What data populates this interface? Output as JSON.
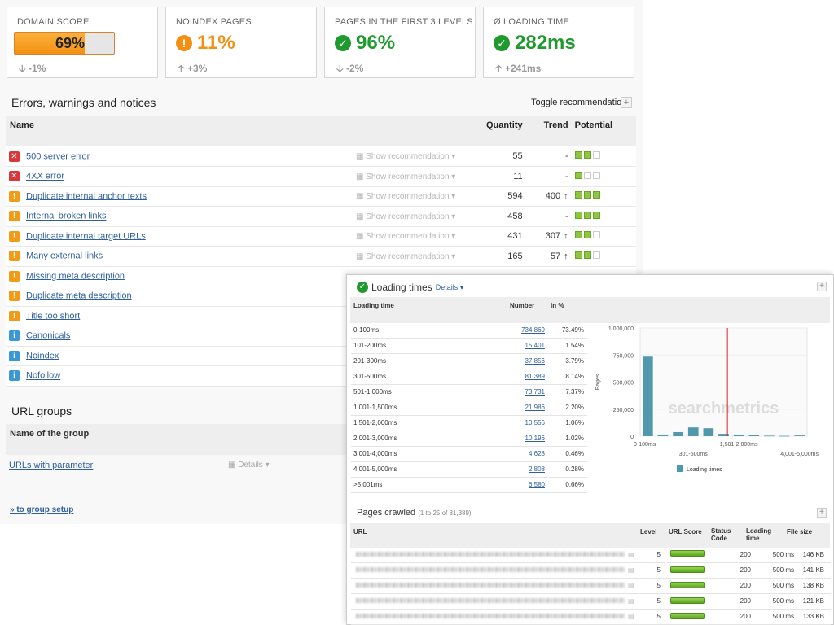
{
  "kpis": [
    {
      "label": "DOMAIN SCORE",
      "value": "69%",
      "score_fraction": 0.69,
      "change": "-1%",
      "change_dir": "down",
      "status": "score",
      "color": "#f39012"
    },
    {
      "label": "NOINDEX PAGES",
      "value": "11%",
      "change": "+3%",
      "change_dir": "up",
      "status": "warning",
      "color": "#f39012"
    },
    {
      "label": "PAGES IN THE FIRST 3 LEVELS",
      "value": "96%",
      "change": "-2%",
      "change_dir": "down",
      "status": "ok",
      "color": "#1f9a2e"
    },
    {
      "label": "Ø LOADING TIME",
      "value": "282ms",
      "change": "+241ms",
      "change_dir": "up",
      "status": "ok",
      "color": "#1f9a2e"
    }
  ],
  "errors": {
    "title": "Errors, warnings and notices",
    "toggle_label": "Toggle recommendations",
    "columns": {
      "name": "Name",
      "quantity": "Quantity",
      "trend": "Trend",
      "potential": "Potential"
    },
    "show_rec": "Show recommendation",
    "rows": [
      {
        "severity": "error",
        "name": "500 server error",
        "quantity": "55",
        "trend": "-",
        "trend_up": false,
        "potential": [
          1,
          1,
          0
        ]
      },
      {
        "severity": "error",
        "name": "4XX error",
        "quantity": "11",
        "trend": "-",
        "trend_up": false,
        "potential": [
          1,
          0,
          0
        ]
      },
      {
        "severity": "warning",
        "name": "Duplicate internal anchor texts",
        "quantity": "594",
        "trend": "400",
        "trend_up": true,
        "potential": [
          1,
          1,
          1
        ]
      },
      {
        "severity": "warning",
        "name": "Internal broken links",
        "quantity": "458",
        "trend": "-",
        "trend_up": false,
        "potential": [
          1,
          1,
          1
        ]
      },
      {
        "severity": "warning",
        "name": "Duplicate internal target URLs",
        "quantity": "431",
        "trend": "307",
        "trend_up": true,
        "potential": [
          1,
          1,
          0
        ]
      },
      {
        "severity": "warning",
        "name": "Many external links",
        "quantity": "165",
        "trend": "57",
        "trend_up": true,
        "potential": [
          1,
          1,
          0
        ]
      },
      {
        "severity": "warning",
        "name": "Missing meta description",
        "quantity": "",
        "trend": "",
        "trend_up": false,
        "potential": []
      },
      {
        "severity": "warning",
        "name": "Duplicate meta description",
        "quantity": "",
        "trend": "",
        "trend_up": false,
        "potential": []
      },
      {
        "severity": "warning",
        "name": "Title too short",
        "quantity": "",
        "trend": "",
        "trend_up": false,
        "potential": []
      },
      {
        "severity": "notice",
        "name": "Canonicals",
        "quantity": "",
        "trend": "",
        "trend_up": false,
        "potential": []
      },
      {
        "severity": "notice",
        "name": "Noindex",
        "quantity": "",
        "trend": "",
        "trend_up": false,
        "potential": []
      },
      {
        "severity": "notice",
        "name": "Nofollow",
        "quantity": "",
        "trend": "",
        "trend_up": false,
        "potential": []
      }
    ]
  },
  "url_groups": {
    "title": "URL groups",
    "column": "Name of the group",
    "rows": [
      {
        "name": "URLs with parameter",
        "details": "Details"
      }
    ],
    "setup_link": "» to group setup"
  },
  "loading_times": {
    "title": "Loading times",
    "details": "Details",
    "columns": {
      "time": "Loading time",
      "number": "Number",
      "pct": "in %"
    },
    "rows": [
      {
        "range": "0-100ms",
        "number": "734,869",
        "pct": "73.49%"
      },
      {
        "range": "101-200ms",
        "number": "15,401",
        "pct": "1.54%"
      },
      {
        "range": "201-300ms",
        "number": "37,856",
        "pct": "3.79%"
      },
      {
        "range": "301-500ms",
        "number": "81,389",
        "pct": "8.14%"
      },
      {
        "range": "501-1,000ms",
        "number": "73,731",
        "pct": "7.37%"
      },
      {
        "range": "1,001-1,500ms",
        "number": "21,986",
        "pct": "2.20%"
      },
      {
        "range": "1,501-2,000ms",
        "number": "10,556",
        "pct": "1.06%"
      },
      {
        "range": "2,001-3,000ms",
        "number": "10,196",
        "pct": "1.02%"
      },
      {
        "range": "3,001-4,000ms",
        "number": "4,628",
        "pct": "0.46%"
      },
      {
        "range": "4,001-5,000ms",
        "number": "2,808",
        "pct": "0.28%"
      },
      {
        "range": ">5,001ms",
        "number": "6,580",
        "pct": "0.66%"
      }
    ]
  },
  "chart_data": {
    "type": "bar",
    "categories": [
      "0-100ms",
      "101-200ms",
      "201-300ms",
      "301-500ms",
      "501-1,000ms",
      "1,001-1,500ms",
      "1,501-2,000ms",
      "2,001-3,000ms",
      "3,001-4,000ms",
      "4,001-5,000ms",
      ">5,001ms"
    ],
    "values": [
      734869,
      15401,
      37856,
      81389,
      73731,
      21986,
      10556,
      10196,
      4628,
      2808,
      6580
    ],
    "x_tick_labels": [
      "0-100ms",
      "301-500ms",
      "1,501-2,000ms",
      "4,001-5,000ms"
    ],
    "y_ticks": [
      "0",
      "250,000",
      "500,000",
      "750,000",
      "1,000,000"
    ],
    "ylim": [
      0,
      1000000
    ],
    "ylabel": "Pages",
    "legend": "Loading times",
    "marker_between": "1,001-1,500ms",
    "watermark": "searchmetrics",
    "bar_color": "#4f98ad",
    "marker_color": "#e0242b"
  },
  "pages_crawled": {
    "title": "Pages crawled",
    "subtitle": "(1 to 25 of 81,389)",
    "columns": {
      "url": "URL",
      "level": "Level",
      "score": "URL Score",
      "status": "Status Code",
      "loading": "Loading time",
      "size": "File size"
    },
    "rows": [
      {
        "level": "5",
        "score": 1.0,
        "status": "200",
        "loading": "500 ms",
        "size": "146 KB"
      },
      {
        "level": "5",
        "score": 1.0,
        "status": "200",
        "loading": "500 ms",
        "size": "141 KB"
      },
      {
        "level": "5",
        "score": 1.0,
        "status": "200",
        "loading": "500 ms",
        "size": "138 KB"
      },
      {
        "level": "5",
        "score": 1.0,
        "status": "200",
        "loading": "500 ms",
        "size": "121 KB"
      },
      {
        "level": "5",
        "score": 1.0,
        "status": "200",
        "loading": "500 ms",
        "size": "133 KB"
      }
    ]
  }
}
